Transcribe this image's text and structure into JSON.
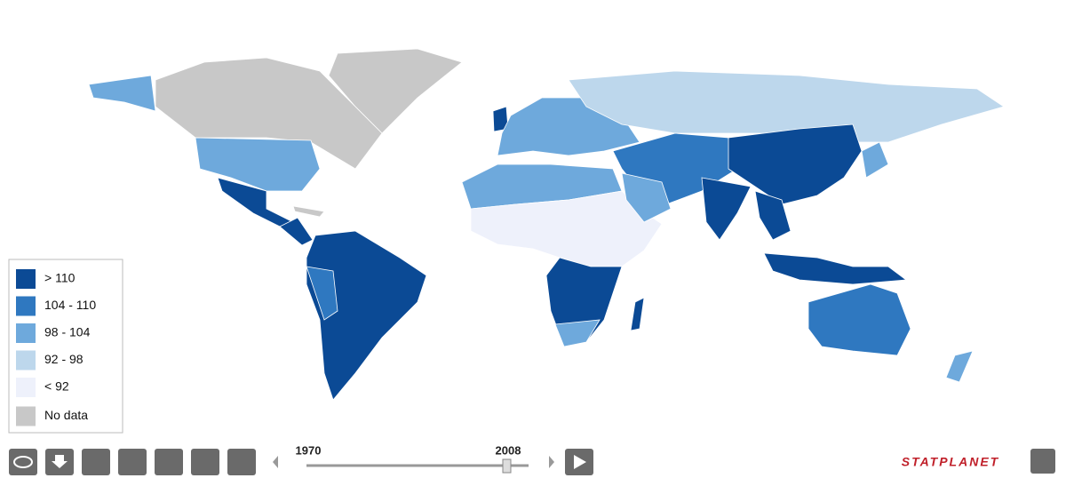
{
  "legend": {
    "items": [
      {
        "label": "> 110",
        "color": "#0b4a95"
      },
      {
        "label": "104 - 110",
        "color": "#2f78c0"
      },
      {
        "label": "98 - 104",
        "color": "#6ea9dc"
      },
      {
        "label": "92 - 98",
        "color": "#bdd7ec"
      },
      {
        "label": "< 92",
        "color": "#eef1fb"
      },
      {
        "label": "No data",
        "color": "#c8c8c8"
      }
    ]
  },
  "timeline": {
    "start": "1970",
    "end": "2008"
  },
  "brand": "STATPLANET"
}
